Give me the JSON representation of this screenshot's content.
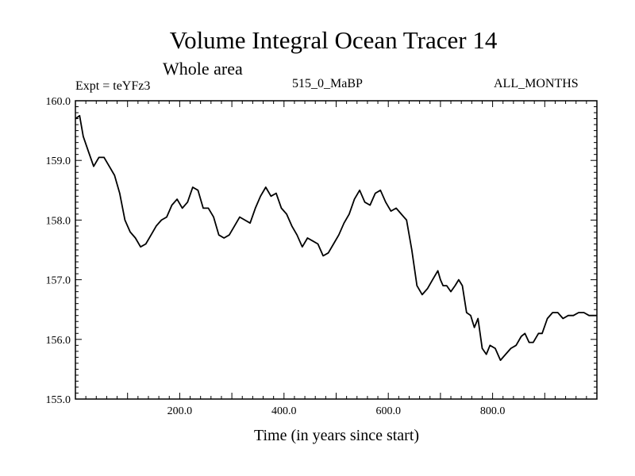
{
  "chart_data": {
    "type": "line",
    "title": "Volume Integral Ocean Tracer 14",
    "subtitle": "Whole area",
    "annotations": {
      "left": "Expt = teYFz3",
      "center": "515_0_MaBP",
      "right": "ALL_MONTHS"
    },
    "xlabel": "Time (in years since start)",
    "ylabel": "",
    "xlim": [
      0,
      1000
    ],
    "ylim": [
      155.0,
      160.0
    ],
    "xticks": [
      200,
      400,
      600,
      800
    ],
    "xtick_labels": [
      "200.0",
      "400.0",
      "600.0",
      "800.0"
    ],
    "yticks": [
      155,
      156,
      157,
      158,
      159,
      160
    ],
    "ytick_labels": [
      "155.0",
      "156.0",
      "157.0",
      "158.0",
      "159.0",
      "160.0"
    ],
    "grid": false,
    "legend": "none",
    "series": [
      {
        "name": "Volume Integral Ocean Tracer 14",
        "color": "#000000",
        "x": [
          0,
          8,
          15,
          25,
          35,
          45,
          55,
          65,
          75,
          85,
          95,
          105,
          115,
          125,
          135,
          145,
          155,
          165,
          175,
          185,
          195,
          205,
          215,
          225,
          235,
          245,
          255,
          265,
          275,
          285,
          295,
          305,
          315,
          325,
          335,
          345,
          355,
          365,
          375,
          385,
          395,
          405,
          415,
          425,
          435,
          445,
          455,
          465,
          475,
          485,
          495,
          505,
          515,
          525,
          535,
          545,
          555,
          565,
          575,
          585,
          595,
          605,
          615,
          625,
          635,
          645,
          655,
          665,
          675,
          685,
          695,
          700,
          705,
          712,
          720,
          728,
          735,
          742,
          750,
          758,
          765,
          772,
          780,
          788,
          795,
          805,
          815,
          825,
          835,
          845,
          855,
          862,
          870,
          878,
          888,
          895,
          905,
          915,
          925,
          935,
          945,
          955,
          965,
          975,
          985,
          993,
          1000
        ],
        "y": [
          159.7,
          159.75,
          159.4,
          159.15,
          158.9,
          159.05,
          159.05,
          158.9,
          158.75,
          158.45,
          158.0,
          157.8,
          157.7,
          157.55,
          157.6,
          157.75,
          157.9,
          158.0,
          158.05,
          158.25,
          158.35,
          158.2,
          158.3,
          158.55,
          158.5,
          158.2,
          158.2,
          158.05,
          157.75,
          157.7,
          157.75,
          157.9,
          158.05,
          158.0,
          157.95,
          158.2,
          158.4,
          158.55,
          158.4,
          158.45,
          158.2,
          158.1,
          157.9,
          157.75,
          157.55,
          157.7,
          157.65,
          157.6,
          157.4,
          157.45,
          157.6,
          157.75,
          157.95,
          158.1,
          158.35,
          158.5,
          158.3,
          158.25,
          158.45,
          158.5,
          158.3,
          158.15,
          158.2,
          158.1,
          158.0,
          157.5,
          156.9,
          156.75,
          156.85,
          157.0,
          157.15,
          157.0,
          156.9,
          156.9,
          156.8,
          156.9,
          157.0,
          156.9,
          156.45,
          156.4,
          156.2,
          156.35,
          155.85,
          155.75,
          155.9,
          155.85,
          155.65,
          155.75,
          155.85,
          155.9,
          156.05,
          156.1,
          155.95,
          155.95,
          156.1,
          156.1,
          156.35,
          156.45,
          156.45,
          156.35,
          156.4,
          156.4,
          156.45,
          156.45,
          156.4,
          156.4,
          156.4
        ]
      }
    ]
  }
}
